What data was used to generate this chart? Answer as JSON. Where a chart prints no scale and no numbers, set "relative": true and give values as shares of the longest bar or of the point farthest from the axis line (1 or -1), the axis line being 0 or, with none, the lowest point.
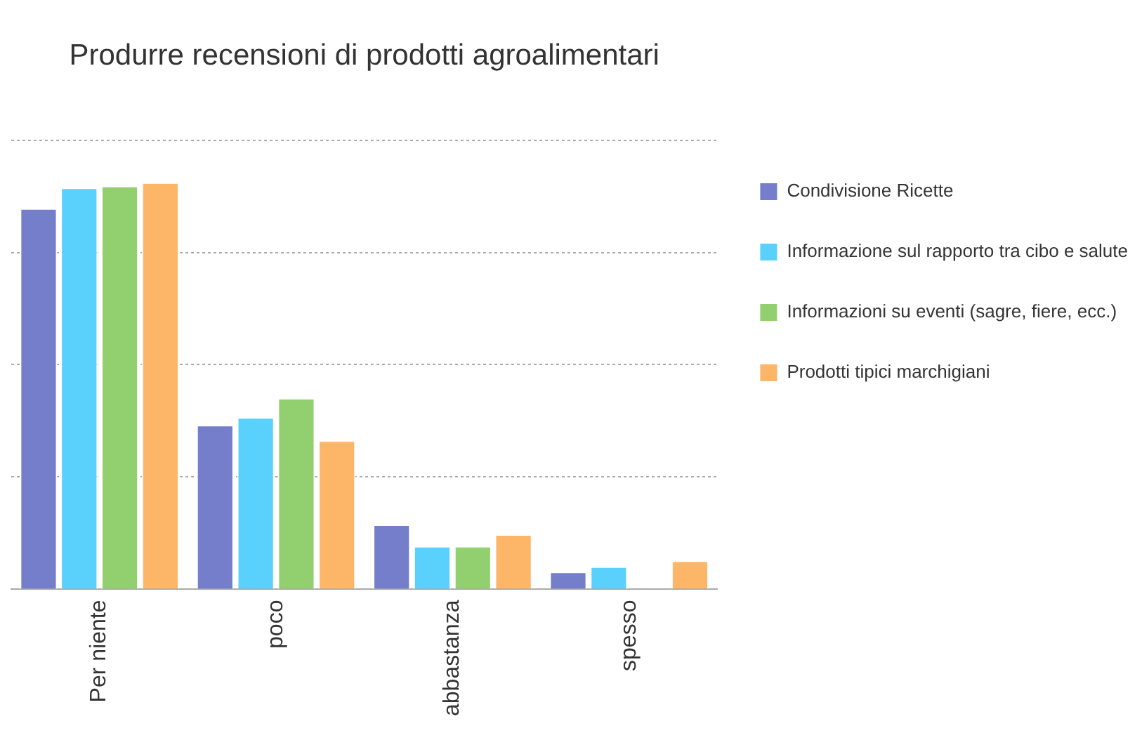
{
  "chart_data": {
    "type": "bar",
    "title": "Produrre recensioni di prodotti agroalimentari",
    "categories": [
      "Per niente",
      "poco",
      "abbastanza",
      "spesso"
    ],
    "relative": true,
    "grid": "y",
    "legend": "top right",
    "series": [
      {
        "name": "Condivisione Ricette",
        "color": "#747ecb",
        "values": [
          0.936,
          0.403,
          0.158,
          0.042
        ]
      },
      {
        "name": "Informazione sul rapporto tra cibo e salute",
        "color": "#5ad0fd",
        "values": [
          0.987,
          0.422,
          0.105,
          0.055
        ]
      },
      {
        "name": "Informazioni su eventi (sagre, fiere, ecc.)",
        "color": "#92d06f",
        "values": [
          0.991,
          0.469,
          0.105,
          0
        ]
      },
      {
        "name": "Prodotti tipici marchigiani",
        "color": "#fdb567",
        "values": [
          1,
          0.365,
          0.134,
          0.069
        ]
      }
    ]
  }
}
